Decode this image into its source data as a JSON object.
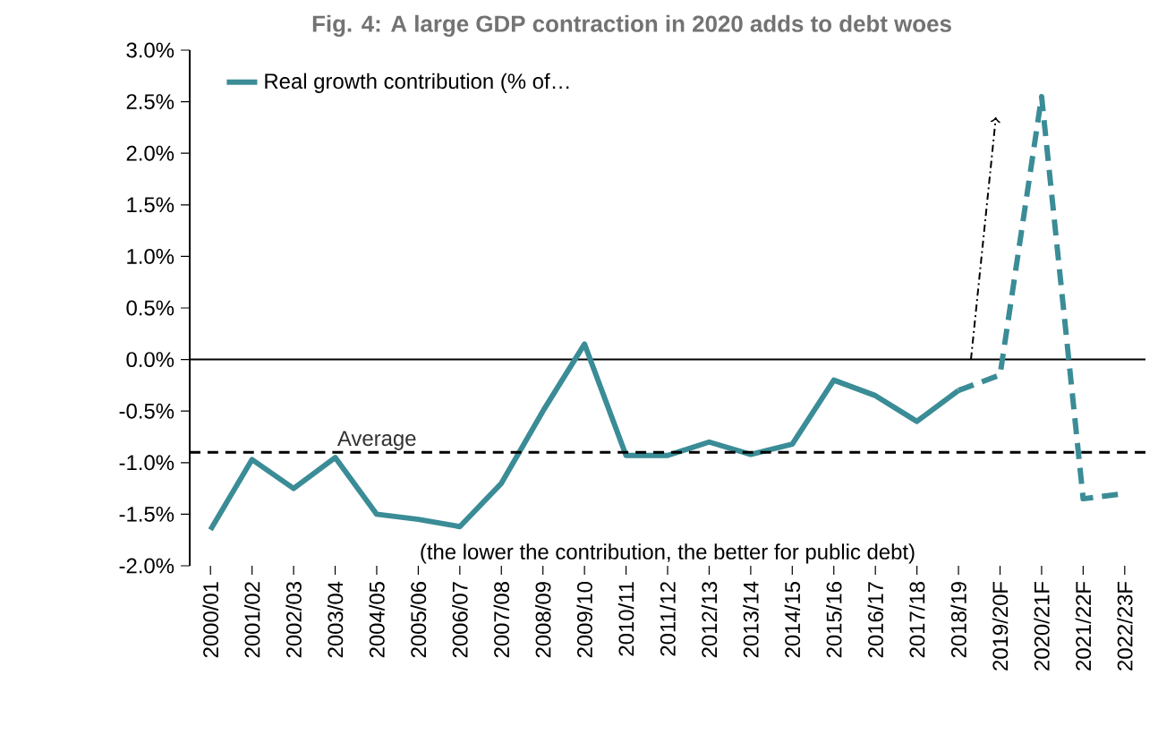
{
  "chart_data": {
    "type": "line",
    "title": "Fig. 4: A large GDP contraction in 2020 adds to debt woes",
    "categories": [
      "2000/01",
      "2001/02",
      "2002/03",
      "2003/04",
      "2004/05",
      "2005/06",
      "2006/07",
      "2007/08",
      "2008/09",
      "2009/10",
      "2010/11",
      "2011/12",
      "2012/13",
      "2013/14",
      "2014/15",
      "2015/16",
      "2016/17",
      "2017/18",
      "2018/19",
      "2019/20F",
      "2020/21F",
      "2021/22F",
      "2022/23F"
    ],
    "series": [
      {
        "name": "Real growth contribution (% of…",
        "color": "#3a8c96",
        "line_style": "solid",
        "values": [
          -1.65,
          -0.97,
          -1.25,
          -0.95,
          -1.5,
          -1.55,
          -1.62,
          -1.2,
          -0.5,
          0.15,
          -0.93,
          -0.93,
          -0.8,
          -0.92,
          -0.82,
          -0.2,
          -0.35,
          -0.6,
          -0.3,
          null,
          null,
          null,
          null
        ]
      },
      {
        "color": "#3a8c96",
        "line_style": "dashed",
        "values": [
          null,
          null,
          null,
          null,
          null,
          null,
          null,
          null,
          null,
          null,
          null,
          null,
          null,
          null,
          null,
          null,
          null,
          null,
          -0.3,
          -0.15,
          2.55,
          -1.35,
          -1.3
        ]
      }
    ],
    "ylim": [
      -2,
      3
    ],
    "yticks": [
      {
        "value": -2,
        "label": "-2.0%"
      },
      {
        "value": -1.5,
        "label": "-1.5%"
      },
      {
        "value": -1,
        "label": "-1.0%"
      },
      {
        "value": -0.5,
        "label": "-0.5%"
      },
      {
        "value": 0,
        "label": "0.0%"
      },
      {
        "value": 0.5,
        "label": "0.5%"
      },
      {
        "value": 1,
        "label": "1.0%"
      },
      {
        "value": 1.5,
        "label": "1.5%"
      },
      {
        "value": 2,
        "label": "2.0%"
      },
      {
        "value": 2.5,
        "label": "2.5%"
      },
      {
        "value": 3,
        "label": "3.0%"
      }
    ],
    "ref_lines": [
      {
        "axis": "y",
        "value": -0.9,
        "label": "Average",
        "color": "#000000",
        "line_style": "dashed"
      }
    ],
    "annotations": [
      "(the lower the contribution, the better for public debt)"
    ],
    "legend": "top left",
    "marker": "none"
  }
}
